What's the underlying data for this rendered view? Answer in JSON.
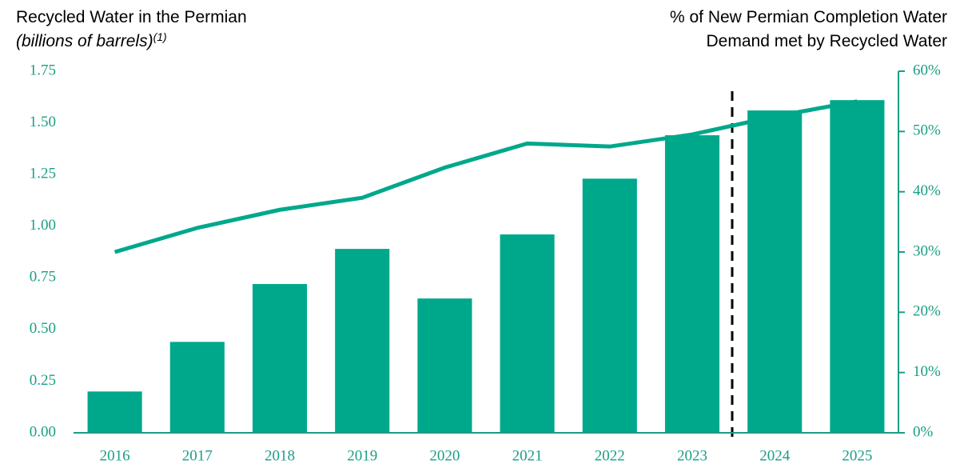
{
  "chart_data": {
    "type": "bar",
    "title": "Recycled Water in the Permian",
    "subtitle": "(billions of barrels)",
    "footnote_marker": "(1)",
    "y2_title": [
      "% of New Permian Completion Water",
      "Demand met by Recycled Water"
    ],
    "categories": [
      "2016",
      "2017",
      "2018",
      "2019",
      "2020",
      "2021",
      "2022",
      "2023",
      "2024",
      "2025"
    ],
    "series": [
      {
        "type": "bar",
        "color": "#00a88b",
        "values": [
          0.2,
          0.44,
          0.72,
          0.89,
          0.65,
          0.96,
          1.23,
          1.44,
          1.56,
          1.61
        ]
      },
      {
        "type": "line",
        "axis": "y2",
        "color": "#00a88b",
        "values": [
          30,
          34,
          37,
          39,
          44,
          48,
          47.5,
          49.5,
          52.5,
          55
        ]
      }
    ],
    "ylim": [
      0,
      1.75
    ],
    "yticks": [
      {
        "value": 0,
        "label": "0.00"
      },
      {
        "value": 0.25,
        "label": "0.25"
      },
      {
        "value": 0.5,
        "label": "0.50"
      },
      {
        "value": 0.75,
        "label": "0.75"
      },
      {
        "value": 1,
        "label": "1.00"
      },
      {
        "value": 1.25,
        "label": "1.25"
      },
      {
        "value": 1.5,
        "label": "1.50"
      },
      {
        "value": 1.75,
        "label": "1.75"
      }
    ],
    "y2lim": [
      0,
      60
    ],
    "y2ticks": [
      {
        "value": 0,
        "label": "0%"
      },
      {
        "value": 10,
        "label": "10%"
      },
      {
        "value": 20,
        "label": "20%"
      },
      {
        "value": 30,
        "label": "30%"
      },
      {
        "value": 40,
        "label": "40%"
      },
      {
        "value": 50,
        "label": "50%"
      },
      {
        "value": 60,
        "label": "60%"
      }
    ],
    "axis_color": "#1a9e85",
    "grid": false
  }
}
